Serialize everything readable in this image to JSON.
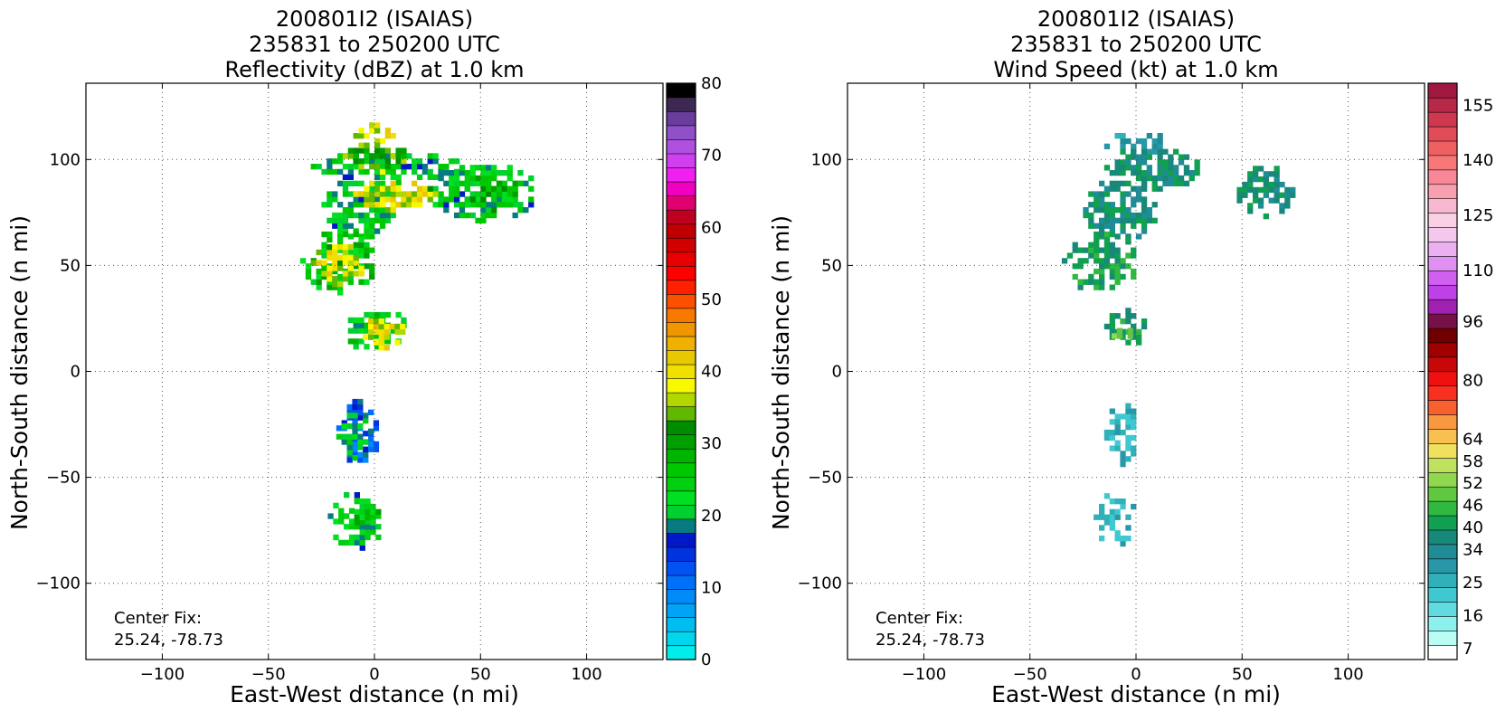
{
  "chart_data": [
    {
      "type": "heatmap",
      "title_lines": [
        "200801I2 (ISAIAS)",
        "235831 to 250200 UTC",
        "Reflectivity (dBZ) at 1.0 km"
      ],
      "xlabel": "East-West distance (n mi)",
      "ylabel": "North-South distance (n mi)",
      "xlim": [
        -136,
        136
      ],
      "ylim": [
        -136,
        136
      ],
      "xticks": [
        -100,
        -50,
        0,
        50,
        100
      ],
      "yticks": [
        -100,
        -50,
        0,
        50,
        100
      ],
      "grid": true,
      "annotation": [
        "Center Fix:",
        "25.24, -78.73"
      ],
      "colorbar": {
        "min": 0,
        "max": 80,
        "tick_values": [
          0,
          10,
          20,
          30,
          40,
          50,
          60,
          70,
          80
        ],
        "tick_labels": [
          "0",
          "10",
          "20",
          "30",
          "40",
          "50",
          "60",
          "70",
          "80"
        ],
        "colors": [
          "#00eded",
          "#00d6ed",
          "#00bdf0",
          "#00a3f5",
          "#008bf8",
          "#0070f8",
          "#0052f3",
          "#0032e0",
          "#0018c8",
          "#077b80",
          "#00d030",
          "#00e020",
          "#00d010",
          "#00c800",
          "#00b500",
          "#00a000",
          "#008c00",
          "#60b800",
          "#b0d800",
          "#f8f800",
          "#f0e000",
          "#e8c800",
          "#f0b000",
          "#f09600",
          "#f87800",
          "#fc5000",
          "#ff2000",
          "#ff0000",
          "#e80000",
          "#d00000",
          "#c00000",
          "#c00020",
          "#e00070",
          "#f000c0",
          "#f020f0",
          "#d040f0",
          "#b050e0",
          "#9050c8",
          "#6a3c9c",
          "#3c2850",
          "#000000"
        ]
      },
      "regions": [
        {
          "x": [
            -10,
            10
          ],
          "y": [
            105,
            116
          ],
          "v": 38
        },
        {
          "x": [
            -30,
            40
          ],
          "y": [
            88,
            103
          ],
          "v": 22
        },
        {
          "x": [
            -15,
            15
          ],
          "y": [
            93,
            107
          ],
          "v": 33
        },
        {
          "x": [
            25,
            75
          ],
          "y": [
            70,
            97
          ],
          "v": 22
        },
        {
          "x": [
            35,
            70
          ],
          "y": [
            75,
            92
          ],
          "v": 28
        },
        {
          "x": [
            -25,
            10
          ],
          "y": [
            60,
            90
          ],
          "v": 22
        },
        {
          "x": [
            -15,
            30
          ],
          "y": [
            75,
            88
          ],
          "v": 38
        },
        {
          "x": [
            -35,
            0
          ],
          "y": [
            36,
            65
          ],
          "v": 26
        },
        {
          "x": [
            -30,
            -5
          ],
          "y": [
            40,
            60
          ],
          "v": 38
        },
        {
          "x": [
            -15,
            15
          ],
          "y": [
            8,
            28
          ],
          "v": 24
        },
        {
          "x": [
            -8,
            15
          ],
          "y": [
            10,
            25
          ],
          "v": 38
        },
        {
          "x": [
            -18,
            0
          ],
          "y": [
            -48,
            -15
          ],
          "v": 14
        },
        {
          "x": [
            -18,
            -2
          ],
          "y": [
            -42,
            -20
          ],
          "v": 22
        },
        {
          "x": [
            -22,
            2
          ],
          "y": [
            -87,
            -58
          ],
          "v": 22
        },
        {
          "x": [
            -12,
            2
          ],
          "y": [
            -75,
            -60
          ],
          "v": 26
        }
      ]
    },
    {
      "type": "heatmap",
      "title_lines": [
        "200801I2 (ISAIAS)",
        "235831 to 250200 UTC",
        "Wind Speed (kt) at 1.0 km"
      ],
      "xlabel": "East-West distance (n mi)",
      "ylabel": "North-South distance (n mi)",
      "xlim": [
        -136,
        136
      ],
      "ylim": [
        -136,
        136
      ],
      "xticks": [
        -100,
        -50,
        0,
        50,
        100
      ],
      "yticks": [
        -100,
        -50,
        0,
        50,
        100
      ],
      "grid": true,
      "annotation": [
        "Center Fix:",
        "25.24, -78.73"
      ],
      "colorbar": {
        "min": 4,
        "max": 161,
        "tick_values": [
          7,
          16,
          25,
          34,
          40,
          46,
          52,
          58,
          64,
          80,
          96,
          110,
          125,
          140,
          155
        ],
        "tick_labels": [
          "7",
          "16",
          "25",
          "34",
          "40",
          "46",
          "52",
          "58",
          "64",
          "80",
          "96",
          "110",
          "125",
          "140",
          "155"
        ],
        "colors": [
          "#ffffff",
          "#b8fcf4",
          "#8cf0ec",
          "#60dce0",
          "#40c8d0",
          "#30b0b8",
          "#2898a8",
          "#208c98",
          "#188878",
          "#10a050",
          "#30b840",
          "#60c840",
          "#90d850",
          "#c0e060",
          "#f0e060",
          "#f8c050",
          "#f89840",
          "#f86030",
          "#f83020",
          "#f01010",
          "#c80808",
          "#a00000",
          "#700000",
          "#781048",
          "#a020b0",
          "#c040e8",
          "#d060f0",
          "#e090f0",
          "#eab0f0",
          "#f4c8ec",
          "#f8d0e4",
          "#f8b8d0",
          "#f8a0b0",
          "#f88898",
          "#f87878",
          "#f06060",
          "#e04c58",
          "#d03850",
          "#b82848",
          "#a01840"
        ],
        "row_labeled": true
      },
      "regions": [
        {
          "x": [
            -15,
            15
          ],
          "y": [
            100,
            112
          ],
          "v": 30
        },
        {
          "x": [
            -15,
            30
          ],
          "y": [
            85,
            105
          ],
          "v": 38
        },
        {
          "x": [
            45,
            75
          ],
          "y": [
            72,
            95
          ],
          "v": 38
        },
        {
          "x": [
            -25,
            10
          ],
          "y": [
            60,
            90
          ],
          "v": 37
        },
        {
          "x": [
            -35,
            0
          ],
          "y": [
            36,
            65
          ],
          "v": 42
        },
        {
          "x": [
            -15,
            5
          ],
          "y": [
            10,
            28
          ],
          "v": 40
        },
        {
          "x": [
            -14,
            -2
          ],
          "y": [
            13,
            20
          ],
          "v": 50
        },
        {
          "x": [
            -15,
            0
          ],
          "y": [
            -45,
            -15
          ],
          "v": 25
        },
        {
          "x": [
            -20,
            0
          ],
          "y": [
            -85,
            -58
          ],
          "v": 24
        }
      ]
    }
  ]
}
